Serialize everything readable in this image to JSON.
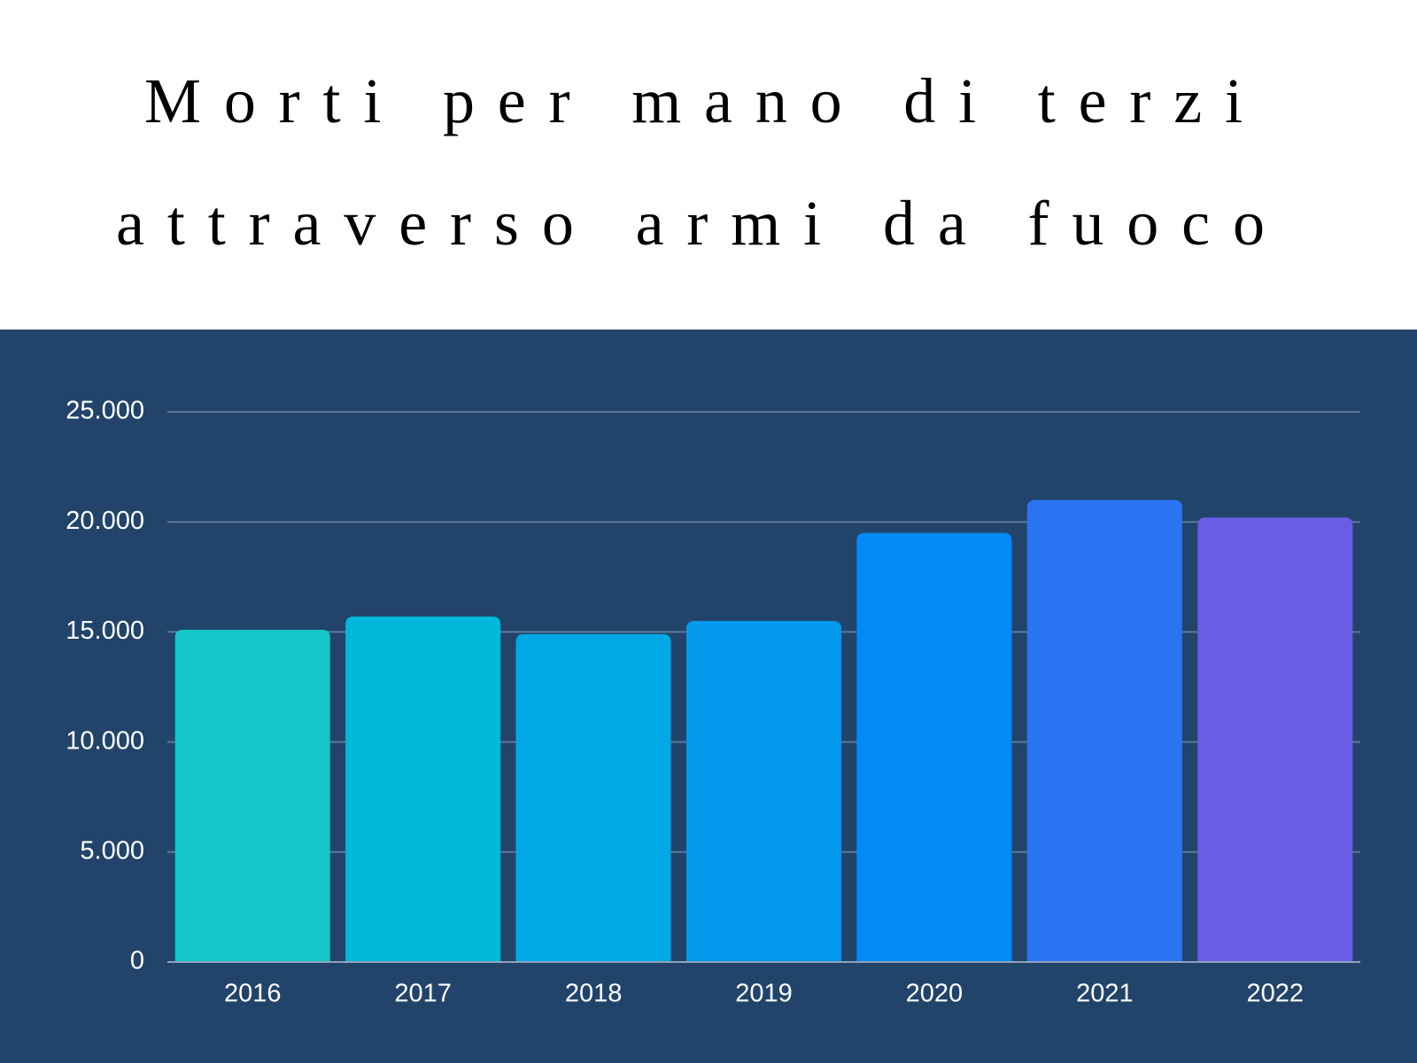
{
  "chart_data": {
    "type": "bar",
    "title_lines": [
      "Morti per mano di terzi",
      "attraverso armi da fuoco"
    ],
    "categories": [
      "2016",
      "2017",
      "2018",
      "2019",
      "2020",
      "2021",
      "2022"
    ],
    "values": [
      15100,
      15700,
      14900,
      15500,
      19500,
      21000,
      20200
    ],
    "colors": [
      "#14c6c8",
      "#00b8d9",
      "#00a8e6",
      "#0399ec",
      "#038bf5",
      "#2a74f3",
      "#6b5ce6"
    ],
    "ylim": [
      0,
      25000
    ],
    "yticks": [
      0,
      {
        "value": 5000,
        "label": "5.000"
      },
      {
        "value": 10000,
        "label": "10.000"
      },
      {
        "value": 15000,
        "label": "15.000"
      },
      {
        "value": 20000,
        "label": "20.000"
      },
      {
        "value": 25000,
        "label": "25.000"
      }
    ],
    "grid": true
  }
}
